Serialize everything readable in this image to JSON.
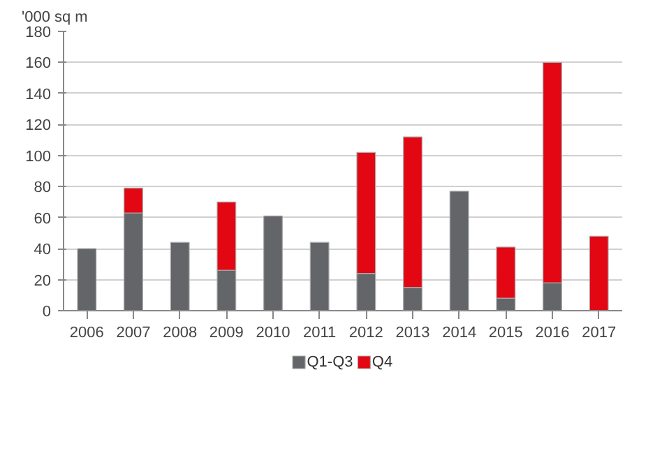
{
  "chart_data": {
    "type": "bar",
    "ylabel": "'000 sq m",
    "categories": [
      "2006",
      "2007",
      "2008",
      "2009",
      "2010",
      "2011",
      "2012",
      "2013",
      "2014",
      "2015",
      "2016",
      "2017"
    ],
    "stacked": true,
    "series": [
      {
        "name": "Q1-Q3",
        "color": "#636569",
        "values": [
          40,
          63,
          44,
          26,
          61,
          44,
          24,
          15,
          77,
          8,
          18,
          null
        ]
      },
      {
        "name": "Q4",
        "color": "#e30613",
        "values": [
          null,
          16,
          null,
          44,
          null,
          null,
          78,
          97,
          null,
          33,
          142,
          48
        ]
      }
    ],
    "ylim": [
      0,
      180
    ],
    "yticks": [
      0,
      20,
      40,
      60,
      80,
      100,
      120,
      140,
      160,
      180
    ],
    "grid": "y",
    "legend": "bottom"
  }
}
